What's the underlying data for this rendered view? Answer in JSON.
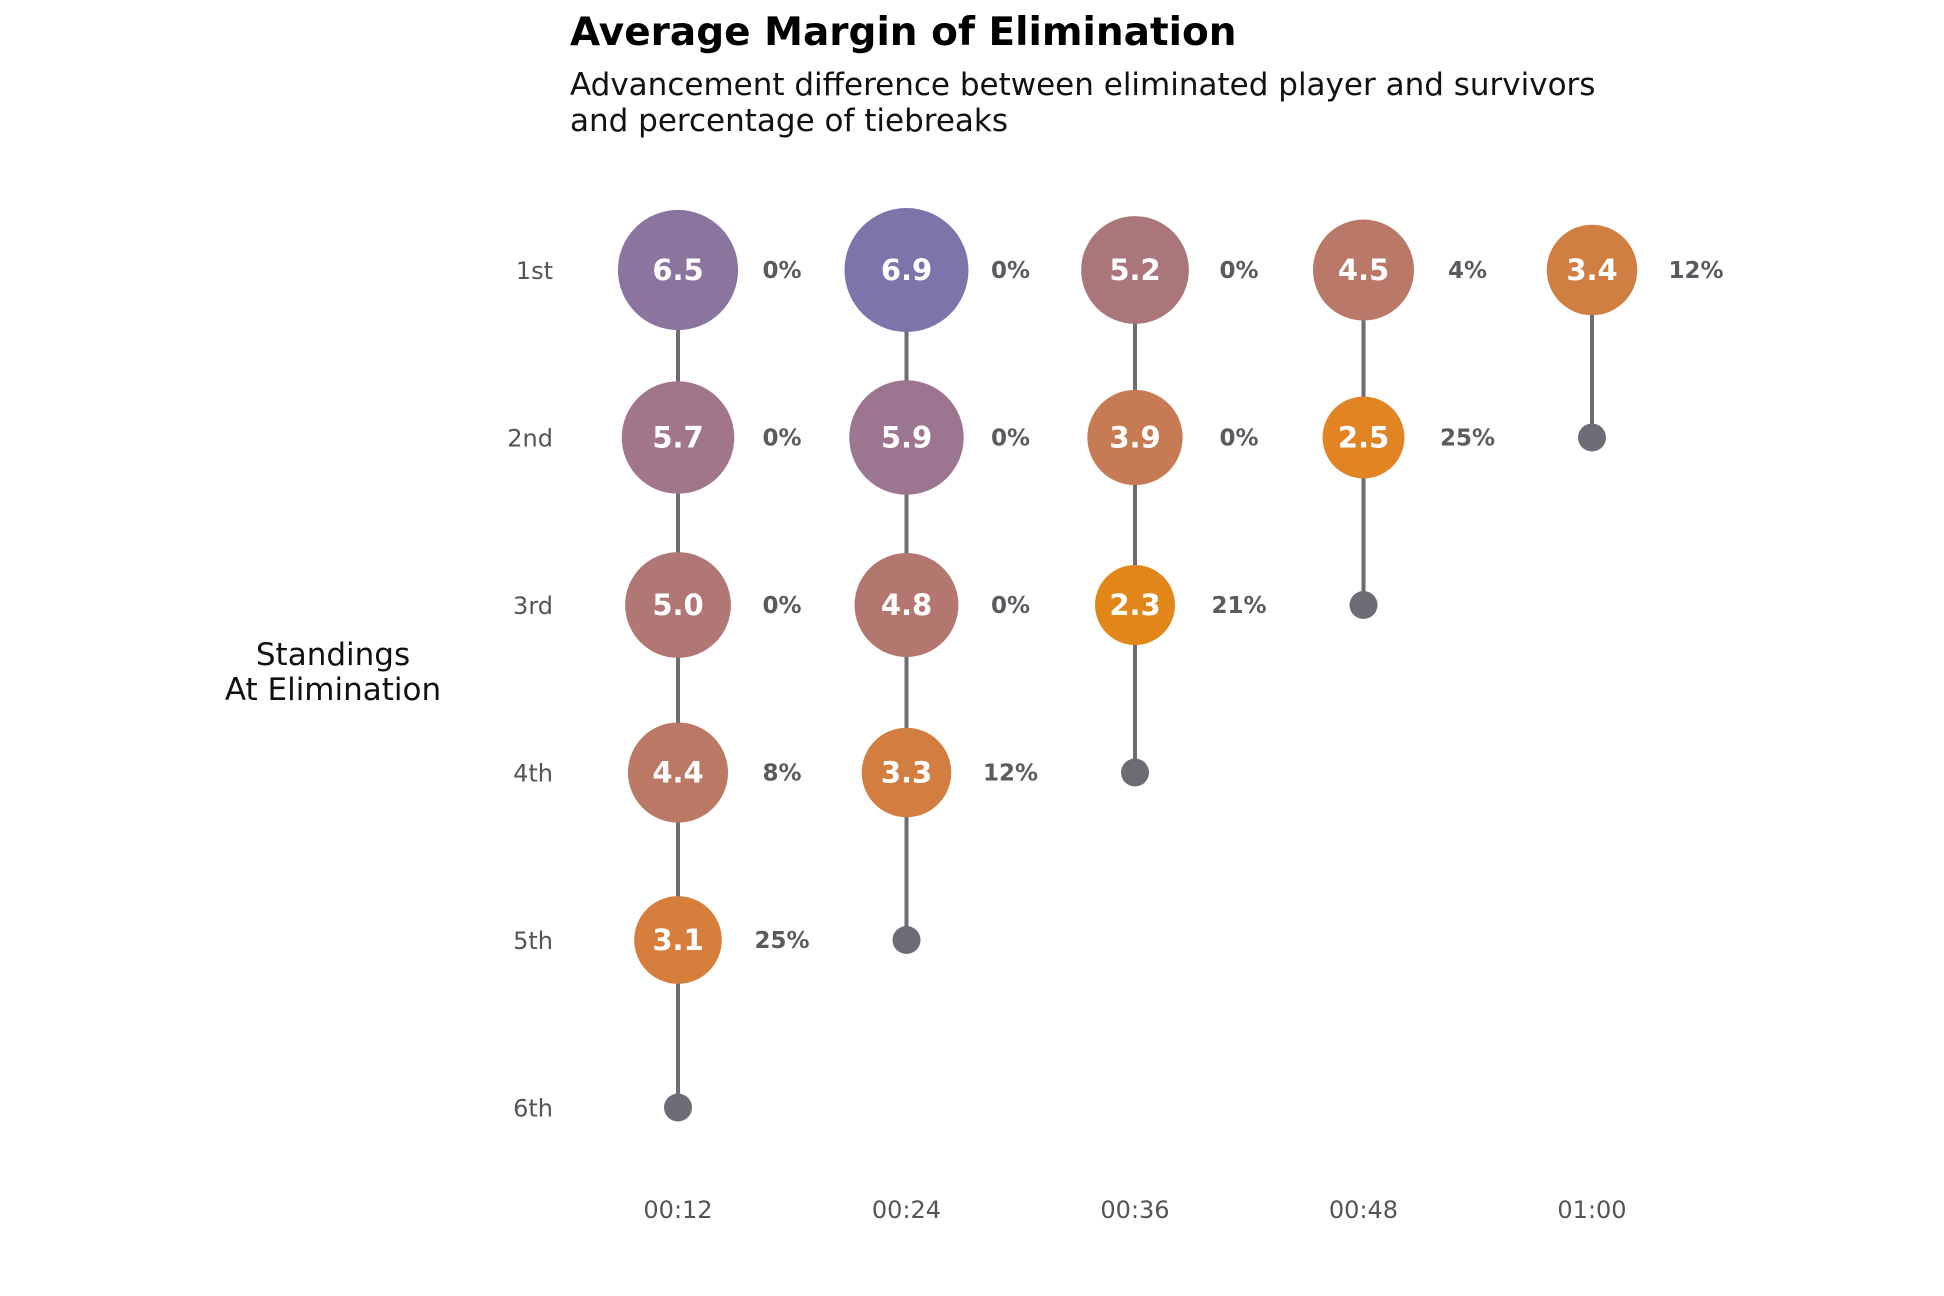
{
  "chart_data": {
    "type": "scatter",
    "title": "Average Margin of Elimination",
    "subtitle_lines": [
      "Advancement difference between eliminated player and survivors",
      "and percentage of tiebreaks"
    ],
    "ylabel_lines": [
      "Standings",
      "At Elimination"
    ],
    "x_categories": [
      "00:12",
      "00:24",
      "00:36",
      "00:48",
      "01:00"
    ],
    "y_categories": [
      "1st",
      "2nd",
      "3rd",
      "4th",
      "5th",
      "6th"
    ],
    "series": [
      {
        "x": "00:12",
        "points": [
          {
            "standing": "1st",
            "margin": 6.5,
            "margin_label": "6.5",
            "tiebreak": "0%"
          },
          {
            "standing": "2nd",
            "margin": 5.7,
            "margin_label": "5.7",
            "tiebreak": "0%"
          },
          {
            "standing": "3rd",
            "margin": 5.0,
            "margin_label": "5.0",
            "tiebreak": "0%"
          },
          {
            "standing": "4th",
            "margin": 4.4,
            "margin_label": "4.4",
            "tiebreak": "8%"
          },
          {
            "standing": "5th",
            "margin": 3.1,
            "margin_label": "3.1",
            "tiebreak": "25%"
          }
        ],
        "end": "6th"
      },
      {
        "x": "00:24",
        "points": [
          {
            "standing": "1st",
            "margin": 6.9,
            "margin_label": "6.9",
            "tiebreak": "0%"
          },
          {
            "standing": "2nd",
            "margin": 5.9,
            "margin_label": "5.9",
            "tiebreak": "0%"
          },
          {
            "standing": "3rd",
            "margin": 4.8,
            "margin_label": "4.8",
            "tiebreak": "0%"
          },
          {
            "standing": "4th",
            "margin": 3.3,
            "margin_label": "3.3",
            "tiebreak": "12%"
          }
        ],
        "end": "5th"
      },
      {
        "x": "00:36",
        "points": [
          {
            "standing": "1st",
            "margin": 5.2,
            "margin_label": "5.2",
            "tiebreak": "0%"
          },
          {
            "standing": "2nd",
            "margin": 3.9,
            "margin_label": "3.9",
            "tiebreak": "0%"
          },
          {
            "standing": "3rd",
            "margin": 2.3,
            "margin_label": "2.3",
            "tiebreak": "21%"
          }
        ],
        "end": "4th"
      },
      {
        "x": "00:48",
        "points": [
          {
            "standing": "1st",
            "margin": 4.5,
            "margin_label": "4.5",
            "tiebreak": "4%"
          },
          {
            "standing": "2nd",
            "margin": 2.5,
            "margin_label": "2.5",
            "tiebreak": "25%"
          }
        ],
        "end": "3rd"
      },
      {
        "x": "01:00",
        "points": [
          {
            "standing": "1st",
            "margin": 3.4,
            "margin_label": "3.4",
            "tiebreak": "12%"
          }
        ],
        "end": "2nd"
      }
    ],
    "bubble_colors": {
      "6.9": "#7f73ab",
      "6.5": "#8b759e",
      "5.9": "#9c7690",
      "5.7": "#a1768a",
      "5.2": "#ab767a",
      "5.0": "#b07774",
      "4.8": "#b3776f",
      "4.5": "#b97868",
      "4.4": "#bb7865",
      "3.9": "#c67b54",
      "3.4": "#d17e43",
      "3.3": "#d27e40",
      "3.1": "#d67e3c",
      "2.5": "#e08424",
      "2.3": "#e3861a"
    },
    "colors": {
      "stem": "#6e6b74",
      "endpoint": "#6e6b74",
      "value_text": "#ffffff",
      "percent_text": "#5c5a60"
    },
    "grid": false,
    "legend": "none"
  }
}
